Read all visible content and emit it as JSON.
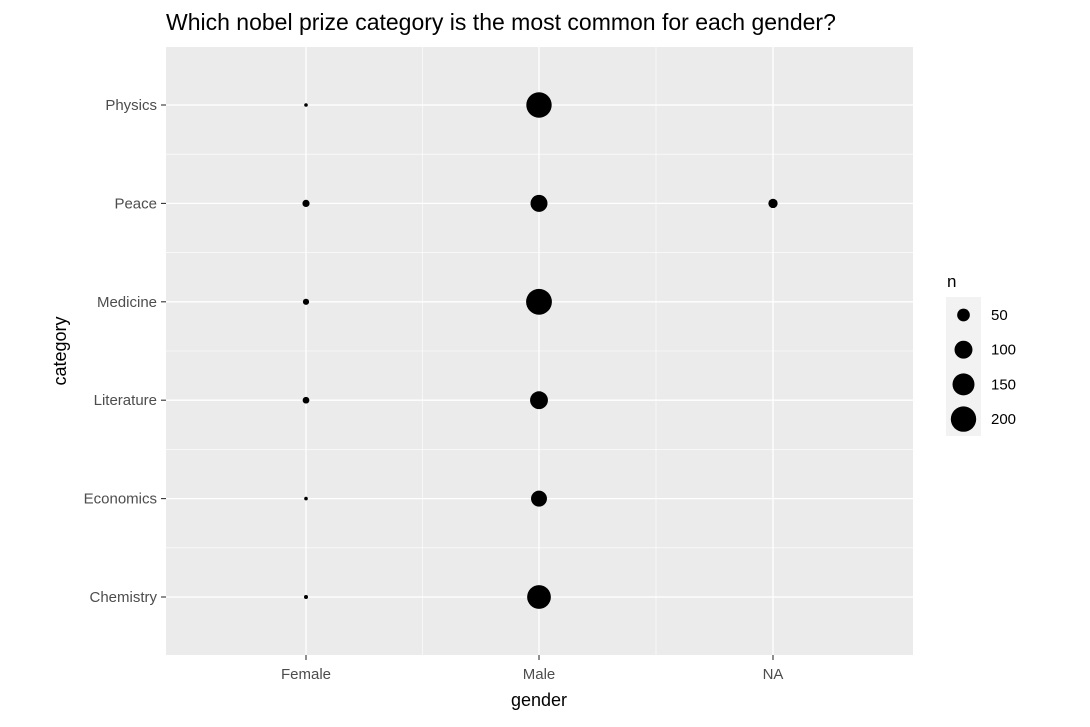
{
  "chart_data": {
    "type": "scatter",
    "title": "Which nobel prize category is the most common for each gender?",
    "xlabel": "gender",
    "ylabel": "category",
    "x_categories": [
      "Female",
      "Male",
      "NA"
    ],
    "y_categories": [
      "Chemistry",
      "Economics",
      "Literature",
      "Medicine",
      "Peace",
      "Physics"
    ],
    "size_variable": "n",
    "grid": true,
    "legend_position": "right",
    "legend": {
      "title": "n",
      "entries": [
        {
          "label": "50",
          "value": 50
        },
        {
          "label": "100",
          "value": 100
        },
        {
          "label": "150",
          "value": 150
        },
        {
          "label": "200",
          "value": 200
        }
      ]
    },
    "points": [
      {
        "x": "Female",
        "y": "Physics",
        "n": 4
      },
      {
        "x": "Male",
        "y": "Physics",
        "n": 200
      },
      {
        "x": "Female",
        "y": "Peace",
        "n": 16
      },
      {
        "x": "Male",
        "y": "Peace",
        "n": 90
      },
      {
        "x": "NA",
        "y": "Peace",
        "n": 27
      },
      {
        "x": "Female",
        "y": "Medicine",
        "n": 12
      },
      {
        "x": "Male",
        "y": "Medicine",
        "n": 207
      },
      {
        "x": "Female",
        "y": "Literature",
        "n": 14
      },
      {
        "x": "Male",
        "y": "Literature",
        "n": 99
      },
      {
        "x": "Female",
        "y": "Economics",
        "n": 2
      },
      {
        "x": "Male",
        "y": "Economics",
        "n": 79
      },
      {
        "x": "Female",
        "y": "Chemistry",
        "n": 5
      },
      {
        "x": "Male",
        "y": "Chemistry",
        "n": 175
      }
    ],
    "colors": {
      "panel_background": "#ebebeb",
      "grid": "#ffffff",
      "point": "#000000",
      "tick": "#333333",
      "legend_key_background": "#f2f2f2"
    }
  }
}
